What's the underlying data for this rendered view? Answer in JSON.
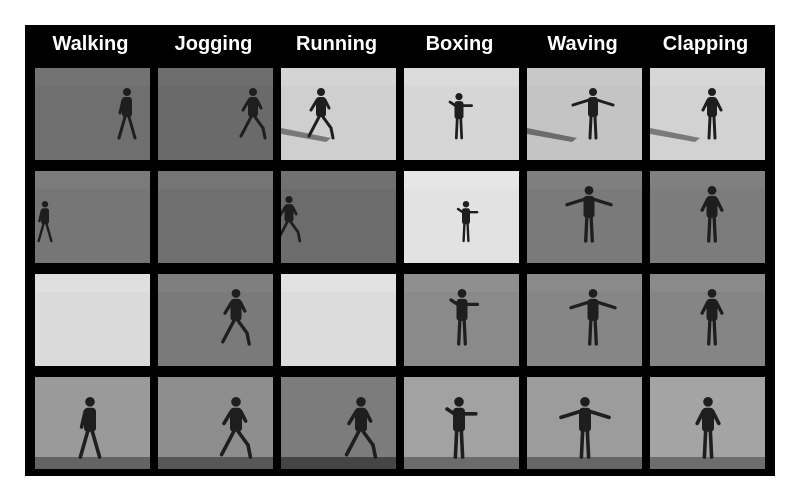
{
  "colors": {
    "board_background": "#000000",
    "label_text": "#ffffff",
    "page_background": "#ffffff"
  },
  "columns": [
    {
      "label": "Walking"
    },
    {
      "label": "Jogging"
    },
    {
      "label": "Running"
    },
    {
      "label": "Boxing"
    },
    {
      "label": "Waving"
    },
    {
      "label": "Clapping"
    }
  ],
  "rows": [
    {
      "scene": "outdoor-grass",
      "frames": [
        {
          "bg": "#6f6f6f",
          "figure": "walking-figure",
          "shadow": false
        },
        {
          "bg": "#6a6a6a",
          "figure": "jogging-figure",
          "shadow": false
        },
        {
          "bg": "#cfcfcf",
          "figure": "running-figure",
          "shadow": true
        },
        {
          "bg": "#d6d6d6",
          "figure": "boxing-figure",
          "shadow": false
        },
        {
          "bg": "#c4c4c4",
          "figure": "waving-figure",
          "shadow": true
        },
        {
          "bg": "#d2d2d2",
          "figure": "clapping-figure",
          "shadow": true
        }
      ]
    },
    {
      "scene": "outdoor-scale-variation",
      "frames": [
        {
          "bg": "#767676",
          "figure": "walking-figure",
          "shadow": false
        },
        {
          "bg": "#707070",
          "figure": "none",
          "shadow": false
        },
        {
          "bg": "#6c6c6c",
          "figure": "running-figure",
          "shadow": false
        },
        {
          "bg": "#e2e2e2",
          "figure": "boxing-figure",
          "shadow": false
        },
        {
          "bg": "#7a7a7a",
          "figure": "waving-figure",
          "shadow": false
        },
        {
          "bg": "#7c7c7c",
          "figure": "clapping-figure",
          "shadow": false
        }
      ]
    },
    {
      "scene": "outdoor-different-clothes",
      "frames": [
        {
          "bg": "#dadada",
          "figure": "none",
          "shadow": false
        },
        {
          "bg": "#7a7a7a",
          "figure": "jogging-figure",
          "shadow": false
        },
        {
          "bg": "#dcdcdc",
          "figure": "none",
          "shadow": false
        },
        {
          "bg": "#8a8a8a",
          "figure": "boxing-figure",
          "shadow": false
        },
        {
          "bg": "#868686",
          "figure": "waving-figure",
          "shadow": false
        },
        {
          "bg": "#858585",
          "figure": "clapping-figure",
          "shadow": false
        }
      ]
    },
    {
      "scene": "indoor-wall",
      "frames": [
        {
          "bg": "#9a9a9a",
          "figure": "walking-figure",
          "shadow": false
        },
        {
          "bg": "#8e8e8e",
          "figure": "jogging-figure",
          "shadow": false
        },
        {
          "bg": "#7c7c7c",
          "figure": "running-figure",
          "shadow": false
        },
        {
          "bg": "#a2a2a2",
          "figure": "boxing-figure",
          "shadow": false
        },
        {
          "bg": "#9c9c9c",
          "figure": "waving-figure",
          "shadow": false
        },
        {
          "bg": "#a4a4a4",
          "figure": "clapping-figure",
          "shadow": false
        }
      ]
    }
  ]
}
